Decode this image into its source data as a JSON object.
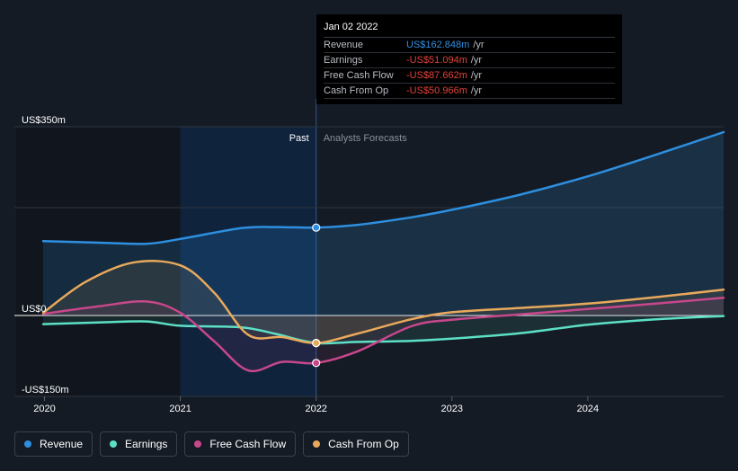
{
  "tooltip": {
    "date": "Jan 02 2022",
    "rows": [
      {
        "name": "Revenue",
        "value": "US$162.848m",
        "unit": "/yr",
        "color": "#2e8fe0"
      },
      {
        "name": "Earnings",
        "value": "-US$51.094m",
        "unit": "/yr",
        "color": "#e0433a"
      },
      {
        "name": "Free Cash Flow",
        "value": "-US$87.662m",
        "unit": "/yr",
        "color": "#e0433a"
      },
      {
        "name": "Cash From Op",
        "value": "-US$50.966m",
        "unit": "/yr",
        "color": "#e0433a"
      }
    ]
  },
  "legend": [
    {
      "label": "Revenue",
      "color": "#2e8fe0"
    },
    {
      "label": "Earnings",
      "color": "#5ce0c6"
    },
    {
      "label": "Free Cash Flow",
      "color": "#c7478b"
    },
    {
      "label": "Cash From Op",
      "color": "#e8a95c"
    }
  ],
  "colors": {
    "background": "#151b24",
    "past_shade": "#0d2745",
    "revenue": "#2e8fe0",
    "earnings": "#5ce0c6",
    "fcf": "#c7478b",
    "cfo": "#e8a95c",
    "zero_line": "#ffffff"
  },
  "chart_data": {
    "type": "line",
    "title": "",
    "xlabel": "",
    "ylabel": "",
    "unit": "US$m",
    "xlim": [
      2019.99,
      2025.0
    ],
    "ylim": [
      -150,
      350
    ],
    "y_tick_labels": [
      {
        "value": 350,
        "label": "US$350m"
      },
      {
        "value": 0,
        "label": "US$0"
      },
      {
        "value": -150,
        "label": "-US$150m"
      }
    ],
    "x_ticks": [
      2020,
      2021,
      2022,
      2023,
      2024
    ],
    "x_tick_labels": [
      "2020",
      "2021",
      "2022",
      "2023",
      "2024"
    ],
    "past_start": 2021.0,
    "divider": 2022.0,
    "region_labels": {
      "past": "Past",
      "forecast": "Analysts Forecasts"
    },
    "series": [
      {
        "name": "Revenue",
        "key": "revenue",
        "x": [
          2019.99,
          2020.4,
          2020.75,
          2021.0,
          2021.45,
          2021.7,
          2022.0,
          2022.3,
          2022.7,
          2023.0,
          2023.5,
          2024.0,
          2024.5,
          2025.0
        ],
        "values": [
          138,
          135,
          133,
          142,
          162,
          164,
          163,
          168,
          182,
          196,
          224,
          258,
          298,
          340
        ]
      },
      {
        "name": "Earnings",
        "key": "earnings",
        "x": [
          2019.99,
          2020.4,
          2020.75,
          2021.0,
          2021.45,
          2021.7,
          2022.0,
          2022.3,
          2022.7,
          2023.0,
          2023.5,
          2024.0,
          2024.5,
          2025.0
        ],
        "values": [
          -16,
          -13,
          -11,
          -19,
          -22,
          -34,
          -51,
          -49,
          -47,
          -43,
          -33,
          -17,
          -7,
          -1
        ]
      },
      {
        "name": "Free Cash Flow",
        "key": "fcf",
        "x": [
          2019.99,
          2020.4,
          2020.75,
          2021.0,
          2021.25,
          2021.5,
          2021.75,
          2022.0,
          2022.3,
          2022.7,
          2023.0,
          2023.5,
          2024.0,
          2024.5,
          2025.0
        ],
        "values": [
          3,
          17,
          26,
          5,
          -48,
          -102,
          -86,
          -88,
          -67,
          -20,
          -8,
          2,
          12,
          22,
          33
        ]
      },
      {
        "name": "Cash From Op",
        "key": "cfo",
        "x": [
          2019.99,
          2020.3,
          2020.65,
          2021.0,
          2021.25,
          2021.5,
          2021.75,
          2022.0,
          2022.3,
          2022.7,
          2023.0,
          2023.5,
          2024.0,
          2024.5,
          2025.0
        ],
        "values": [
          5,
          62,
          98,
          93,
          42,
          -36,
          -40,
          -51,
          -34,
          -7,
          6,
          14,
          22,
          34,
          48
        ]
      }
    ],
    "highlight_points": [
      {
        "key": "revenue",
        "x": 2022.0,
        "y": 163
      },
      {
        "key": "earnings",
        "x": 2022.0,
        "y": -51
      },
      {
        "key": "fcf",
        "x": 2022.0,
        "y": -88
      },
      {
        "key": "cfo",
        "x": 2022.0,
        "y": -51
      }
    ]
  }
}
